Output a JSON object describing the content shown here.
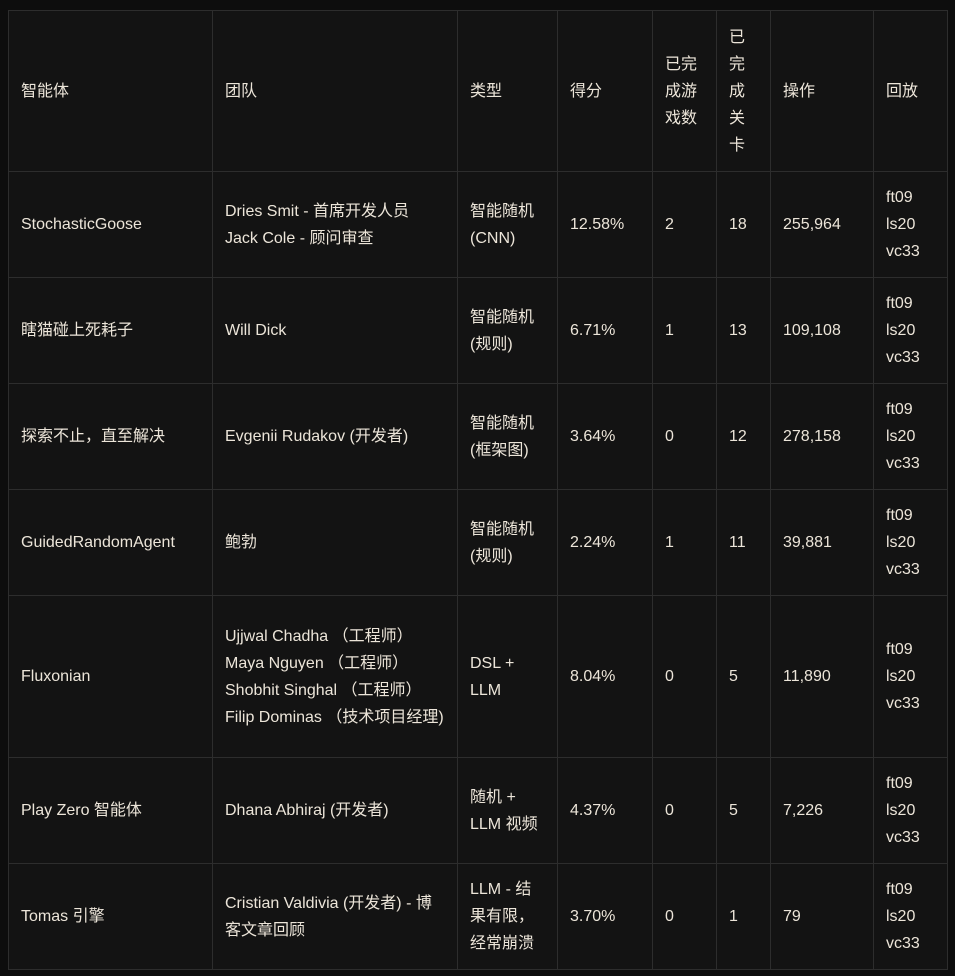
{
  "colors": {
    "page_bg": "#0d0d0d",
    "cell_bg": "#131313",
    "border": "#2d2d2d",
    "text": "#ece5d9"
  },
  "table": {
    "columns": [
      {
        "key": "agent",
        "label": "智能体"
      },
      {
        "key": "team",
        "label": "团队"
      },
      {
        "key": "type",
        "label": "类型"
      },
      {
        "key": "score",
        "label": "得分"
      },
      {
        "key": "games",
        "label": "已完成游戏数"
      },
      {
        "key": "levels",
        "label": "已完成关卡"
      },
      {
        "key": "actions",
        "label": "操作"
      },
      {
        "key": "replay",
        "label": "回放"
      }
    ],
    "rows": [
      {
        "agent": "StochasticGoose",
        "team": "Dries Smit - 首席开发人员 Jack Cole - 顾问审查",
        "type": "智能随机 (CNN)",
        "score": "12.58%",
        "games": "2",
        "levels": "18",
        "actions": "255,964",
        "replay": [
          "ft09",
          "ls20",
          "vc33"
        ],
        "tall": false
      },
      {
        "agent": "瞎猫碰上死耗子",
        "team": "Will Dick",
        "type": "智能随机 (规则)",
        "score": "6.71%",
        "games": "1",
        "levels": "13",
        "actions": "109,108",
        "replay": [
          "ft09",
          "ls20",
          "vc33"
        ],
        "tall": false
      },
      {
        "agent": "探索不止，直至解决",
        "team": "Evgenii Rudakov (开发者)",
        "type": "智能随机 (框架图)",
        "score": "3.64%",
        "games": "0",
        "levels": "12",
        "actions": "278,158",
        "replay": [
          "ft09",
          "ls20",
          "vc33"
        ],
        "tall": false
      },
      {
        "agent": "GuidedRandomAgent",
        "team": "鲍勃",
        "type": "智能随机 (规则)",
        "score": "2.24%",
        "games": "1",
        "levels": "11",
        "actions": "39,881",
        "replay": [
          "ft09",
          "ls20",
          "vc33"
        ],
        "tall": false
      },
      {
        "agent": "Fluxonian",
        "team": "Ujjwal Chadha （工程师） Maya Nguyen （工程师） Shobhit Singhal （工程师）  Filip Dominas （技术项目经理)",
        "type": "DSL + LLM",
        "score": "8.04%",
        "games": "0",
        "levels": "5",
        "actions": "11,890",
        "replay": [
          "ft09",
          "ls20",
          "vc33"
        ],
        "tall": true
      },
      {
        "agent": "Play Zero 智能体",
        "team": "Dhana Abhiraj (开发者)",
        "type": "随机 + LLM 视频",
        "score": "4.37%",
        "games": "0",
        "levels": "5",
        "actions": "7,226",
        "replay": [
          "ft09",
          "ls20",
          "vc33"
        ],
        "tall": false
      },
      {
        "agent": "Tomas 引擎",
        "team": "Cristian Valdivia (开发者) - 博客文章回顾",
        "type": "LLM - 结果有限，经常崩溃",
        "score": "3.70%",
        "games": "0",
        "levels": "1",
        "actions": "79",
        "replay": [
          "ft09",
          "ls20",
          "vc33"
        ],
        "tall": false
      }
    ]
  }
}
